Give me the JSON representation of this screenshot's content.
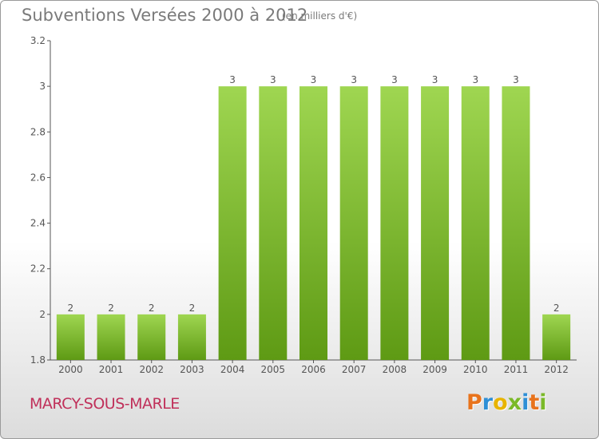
{
  "title": "Subventions Versées 2000 à 2012",
  "units": "(en milliers d'€)",
  "commune": "MARCY-SOUS-MARLE",
  "logo": {
    "letters": [
      "P",
      "r",
      "o",
      "x",
      "i",
      "t",
      "i"
    ],
    "colors": [
      "#e8731c",
      "#2e8fd6",
      "#e8b400",
      "#7ab928",
      "#2e8fd6",
      "#e8731c",
      "#7ab928"
    ]
  },
  "colors": {
    "bar_top": "#9fd651",
    "bar_bottom": "#5e9a14",
    "axis": "#555555",
    "title": "#7a7a7a",
    "commune": "#c0305a"
  },
  "chart_data": {
    "type": "bar",
    "categories": [
      "2000",
      "2001",
      "2002",
      "2003",
      "2004",
      "2005",
      "2006",
      "2007",
      "2008",
      "2009",
      "2010",
      "2011",
      "2012"
    ],
    "values": [
      2,
      2,
      2,
      2,
      3,
      3,
      3,
      3,
      3,
      3,
      3,
      3,
      2
    ],
    "data_labels": [
      "2",
      "2",
      "2",
      "2",
      "3",
      "3",
      "3",
      "3",
      "3",
      "3",
      "3",
      "3",
      "2"
    ],
    "ylim": [
      1.8,
      3.2
    ],
    "yticks": [
      1.8,
      2,
      2.2,
      2.4,
      2.6,
      2.8,
      3,
      3.2
    ],
    "ytick_labels": [
      "1.8",
      "2",
      "2.2",
      "2.4",
      "2.6",
      "2.8",
      "3",
      "3.2"
    ],
    "grid": false,
    "legend": "none"
  }
}
